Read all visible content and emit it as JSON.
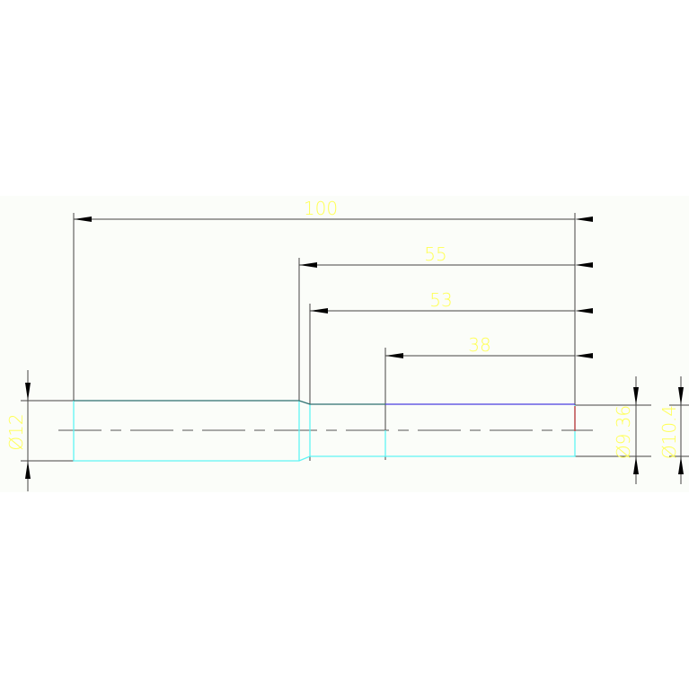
{
  "drawing": {
    "colors": {
      "dimension": "#000000",
      "text": "#ffff55",
      "part": "#5ff5f5",
      "edge": "#2e7070",
      "edge_highlight": "#4a3ee0",
      "background": "#fbfdf9"
    },
    "dimensions": {
      "overall_length": "100",
      "length_55": "55",
      "length_53": "53",
      "length_38": "38",
      "dia_left": "Ø12",
      "dia_9_36": "Ø9.36",
      "dia_10_4": "Ø10.4"
    }
  }
}
